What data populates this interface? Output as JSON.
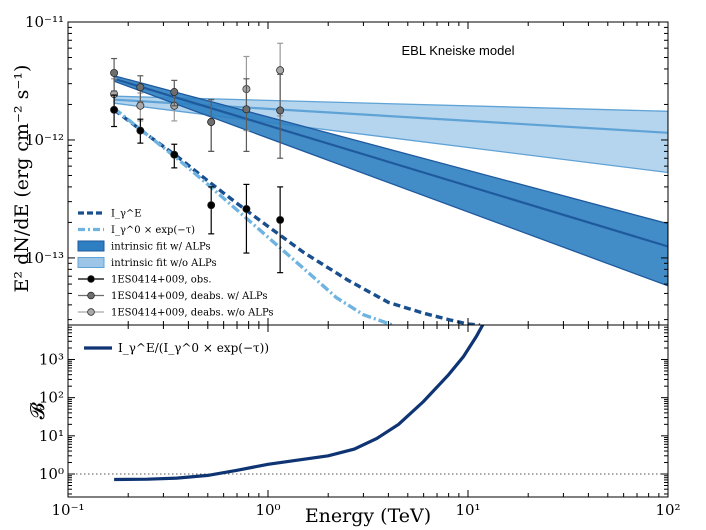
{
  "chart_data": [
    {
      "type": "line",
      "annotation": "EBL Kneiske model",
      "xlabel": "Energy (TeV)",
      "ylabel": "E² dN/dE (erg cm⁻² s⁻¹)",
      "xscale": "log",
      "yscale": "log",
      "xlim": [
        0.1,
        100
      ],
      "ylim": [
        2.7e-14,
        1e-11
      ],
      "x_ticks": [
        "10⁻¹",
        "10⁰",
        "10¹",
        "10²"
      ],
      "y_ticks": [
        "10⁻¹¹",
        "10⁻¹²",
        "10⁻¹³"
      ],
      "legend_position": "lower-left",
      "colors": {
        "dark": "#1f5a9e",
        "band_alp": "#2d7fc1",
        "band_noalp": "#9cc5e8",
        "mid": "#5fa3d6",
        "model_dash": "#1a4f8f",
        "model_dashdot": "#6fb4e0"
      },
      "series": [
        {
          "name": "I_γ^E",
          "style": "dashed",
          "x": [
            0.17,
            0.25,
            0.35,
            0.5,
            0.7,
            1.0,
            1.5,
            2.5,
            4.0,
            6.0,
            8.0,
            10.0,
            11.5
          ],
          "y": [
            1.8e-12,
            1.1e-12,
            7.3e-13,
            4.5e-13,
            2.9e-13,
            1.85e-13,
            1.12e-13,
            6.5e-14,
            4.2e-14,
            3.4e-14,
            3e-14,
            2.75e-14,
            2.7e-14
          ]
        },
        {
          "name": "I_γ^0 × exp(−τ)",
          "style": "dashdot",
          "x": [
            0.17,
            0.25,
            0.35,
            0.5,
            0.7,
            1.0,
            1.5,
            2.2,
            3.0,
            4.2
          ],
          "y": [
            1.85e-12,
            1.1e-12,
            7e-13,
            4.2e-13,
            2.55e-13,
            1.5e-13,
            8.2e-14,
            4.6e-14,
            3.3e-14,
            2.7e-14
          ]
        },
        {
          "name": "intrinsic fit w/ ALPs",
          "style": "band",
          "x": [
            0.17,
            100
          ],
          "y": [
            3.3e-12,
            1.25e-13
          ],
          "y_upper": [
            3.5e-12,
            1.95e-13
          ],
          "y_lower": [
            3.15e-12,
            5.8e-14
          ]
        },
        {
          "name": "intrinsic fit w/o ALPs",
          "style": "band",
          "x": [
            0.17,
            100
          ],
          "y": [
            2.2e-12,
            1.15e-12
          ],
          "y_upper": [
            2.35e-12,
            1.75e-12
          ],
          "y_lower": [
            2.05e-12,
            5.3e-13
          ]
        },
        {
          "name": "1ES0414+009, obs.",
          "style": "points",
          "x": [
            0.17,
            0.23,
            0.34,
            0.52,
            0.78,
            1.15
          ],
          "y": [
            1.8e-12,
            1.2e-12,
            7.5e-13,
            2.8e-13,
            2.6e-13,
            2.1e-13
          ],
          "y_upper": [
            2.4e-12,
            1.5e-12,
            9.2e-13,
            4e-13,
            4.2e-13,
            4e-13
          ],
          "y_lower": [
            1.3e-12,
            9.4e-13,
            5.8e-13,
            1.6e-13,
            1.1e-13,
            7.5e-14
          ]
        },
        {
          "name": "1ES0414+009, deabs. w/ ALPs",
          "style": "points",
          "x": [
            0.17,
            0.23,
            0.34,
            0.52,
            0.78,
            1.15
          ],
          "y": [
            3.7e-12,
            2.8e-12,
            2.55e-12,
            1.42e-12,
            1.82e-12,
            1.78e-12
          ],
          "y_upper": [
            4.9e-12,
            3.5e-12,
            3.2e-12,
            2.2e-12,
            3.3e-12,
            3.6e-12
          ],
          "y_lower": [
            2.6e-12,
            2.1e-12,
            1.95e-12,
            8e-13,
            8e-13,
            7e-13
          ]
        },
        {
          "name": "1ES0414+009, deabs. w/o ALPs",
          "style": "points",
          "x": [
            0.17,
            0.23,
            0.34,
            0.52,
            0.78,
            1.15
          ],
          "y": [
            2.45e-12,
            1.95e-12,
            1.95e-12,
            1.42e-12,
            2.7e-12,
            3.9e-12
          ],
          "y_upper": [
            3.3e-12,
            2.5e-12,
            2.6e-12,
            2.2e-12,
            5.1e-12,
            6.6e-12
          ],
          "y_lower": [
            1.75e-12,
            1.45e-12,
            1.45e-12,
            8e-13,
            1.2e-12,
            1.6e-12
          ]
        }
      ]
    },
    {
      "type": "line",
      "xlabel": "Energy (TeV)",
      "ylabel": "𝓑",
      "xscale": "log",
      "yscale": "log",
      "xlim": [
        0.1,
        100
      ],
      "ylim": [
        0.25,
        8000
      ],
      "y_ticks": [
        "10⁰",
        "10¹",
        "10²",
        "10³"
      ],
      "reference_line": 1,
      "series": [
        {
          "name": "I_γ^E/(I_γ^0 × exp(−τ))",
          "x": [
            0.17,
            0.25,
            0.35,
            0.5,
            0.7,
            1.0,
            1.4,
            2.0,
            2.7,
            3.5,
            4.5,
            6.0,
            8.0,
            9.5,
            11.0,
            12.0
          ],
          "y": [
            0.72,
            0.73,
            0.78,
            0.92,
            1.25,
            1.8,
            2.3,
            3.0,
            4.5,
            8.5,
            20.0,
            80.0,
            400.0,
            1200.0,
            4000.0,
            9000.0
          ]
        }
      ]
    }
  ]
}
